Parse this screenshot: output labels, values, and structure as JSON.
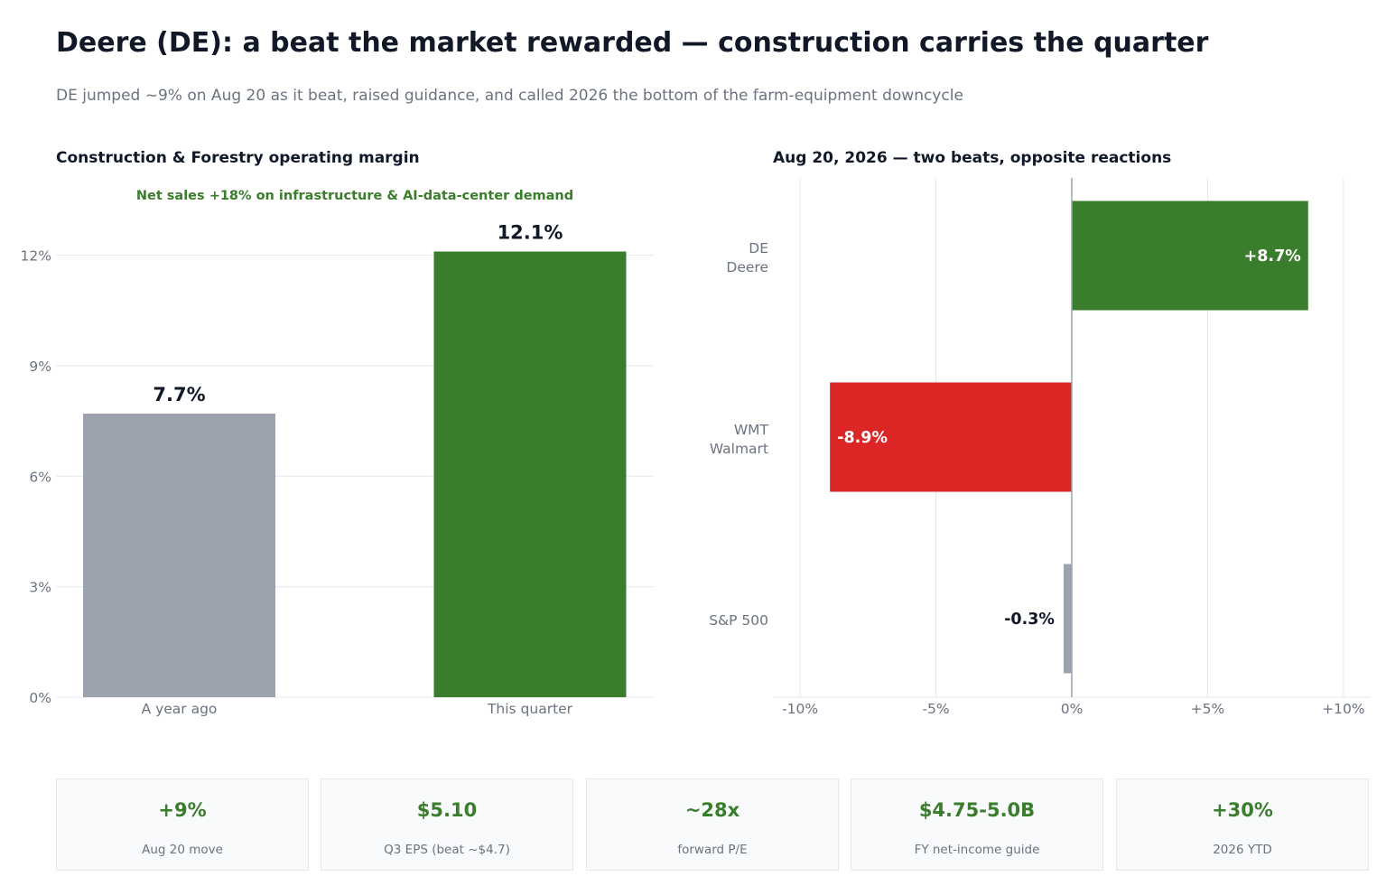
{
  "header": {
    "title": "Deere (DE): a beat the market rewarded — construction carries the quarter",
    "subtitle": "DE jumped ~9% on Aug 20 as it beat, raised guidance, and called 2026 the bottom of the farm-equipment downcycle"
  },
  "colors": {
    "green": "#3a7d2c",
    "red": "#dc2626",
    "gray": "#9ca3af",
    "text_dark": "#111827",
    "text_muted": "#6b7280",
    "grid": "#e5e7eb"
  },
  "chart_data": [
    {
      "type": "bar",
      "title": "Construction & Forestry operating margin",
      "annotation": "Net sales +18% on infrastructure & AI-data-center demand",
      "categories": [
        "A year ago",
        "This quarter"
      ],
      "values": [
        7.7,
        12.1
      ],
      "value_labels": [
        "7.7%",
        "12.1%"
      ],
      "bar_colors": [
        "#9ca3af",
        "#3a7d2c"
      ],
      "ylim": [
        0,
        14
      ],
      "yticks": [
        0,
        3,
        6,
        9,
        12
      ],
      "ytick_labels": [
        "0%",
        "3%",
        "6%",
        "9%",
        "12%"
      ],
      "grid": true
    },
    {
      "type": "bar",
      "orientation": "horizontal",
      "title": "Aug 20, 2026 — two beats, opposite reactions",
      "categories": [
        {
          "line1": "DE",
          "line2": "Deere"
        },
        {
          "line1": "WMT",
          "line2": "Walmart"
        },
        {
          "line1": "S&P 500",
          "line2": ""
        }
      ],
      "values": [
        8.7,
        -8.9,
        -0.3
      ],
      "value_labels": [
        "+8.7%",
        "-8.9%",
        "-0.3%"
      ],
      "bar_colors": [
        "#3a7d2c",
        "#dc2626",
        "#9ca3af"
      ],
      "xlim": [
        -11,
        11
      ],
      "xticks": [
        -10,
        -5,
        0,
        5,
        10
      ],
      "xtick_labels": [
        "-10%",
        "-5%",
        "0%",
        "+5%",
        "+10%"
      ],
      "grid": true
    }
  ],
  "kpis": [
    {
      "value": "+9%",
      "label": "Aug 20 move"
    },
    {
      "value": "$5.10",
      "label": "Q3 EPS (beat ~$4.7)"
    },
    {
      "value": "~28x",
      "label": "forward P/E"
    },
    {
      "value": "$4.75-5.0B",
      "label": "FY net-income guide"
    },
    {
      "value": "+30%",
      "label": "2026 YTD"
    }
  ]
}
